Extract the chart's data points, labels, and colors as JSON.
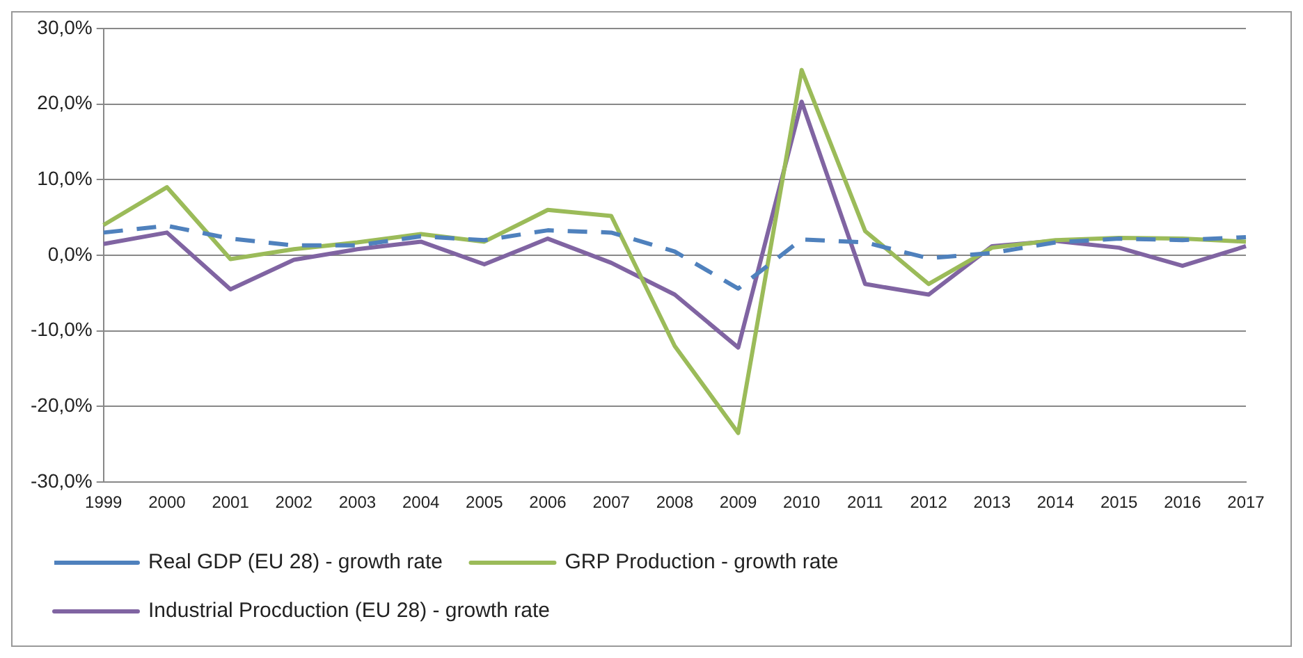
{
  "chart_data": {
    "type": "line",
    "categories": [
      "1999",
      "2000",
      "2001",
      "2002",
      "2003",
      "2004",
      "2005",
      "2006",
      "2007",
      "2008",
      "2009",
      "2010",
      "2011",
      "2012",
      "2013",
      "2014",
      "2015",
      "2016",
      "2017"
    ],
    "series": [
      {
        "name": "Real GDP (EU 28) - growth rate",
        "color": "#4f81bd",
        "line_style": "dashed",
        "values": [
          3.0,
          3.9,
          2.2,
          1.3,
          1.3,
          2.5,
          2.0,
          3.3,
          3.0,
          0.5,
          -4.4,
          2.1,
          1.7,
          -0.4,
          0.3,
          1.7,
          2.2,
          2.0,
          2.4
        ]
      },
      {
        "name": "GRP Production - growth rate",
        "color": "#9bbb59",
        "line_style": "solid",
        "values": [
          4.0,
          9.0,
          -0.5,
          0.8,
          1.7,
          2.8,
          1.8,
          6.0,
          5.2,
          -12.0,
          -23.5,
          24.5,
          3.2,
          -3.8,
          1.0,
          2.0,
          2.3,
          2.2,
          1.8
        ]
      },
      {
        "name": "Industrial Procduction (EU 28) - growth rate",
        "color": "#8064a2",
        "line_style": "solid",
        "values": [
          1.5,
          3.0,
          -4.5,
          -0.6,
          0.8,
          1.8,
          -1.2,
          2.2,
          -1.0,
          -5.2,
          -12.2,
          20.3,
          -3.8,
          -5.2,
          1.2,
          1.9,
          1.0,
          -1.4,
          1.2
        ]
      }
    ],
    "ylim": [
      -30,
      30
    ],
    "yticks": [
      {
        "value": -30,
        "label": "-30,0%"
      },
      {
        "value": -20,
        "label": "-20,0%"
      },
      {
        "value": -10,
        "label": "-10,0%"
      },
      {
        "value": 0,
        "label": "0,0%"
      },
      {
        "value": 10,
        "label": "10,0%"
      },
      {
        "value": 20,
        "label": "20,0%"
      },
      {
        "value": 30,
        "label": "30,0%"
      }
    ],
    "grid": "y",
    "legend": "bottom",
    "marker": "none"
  }
}
